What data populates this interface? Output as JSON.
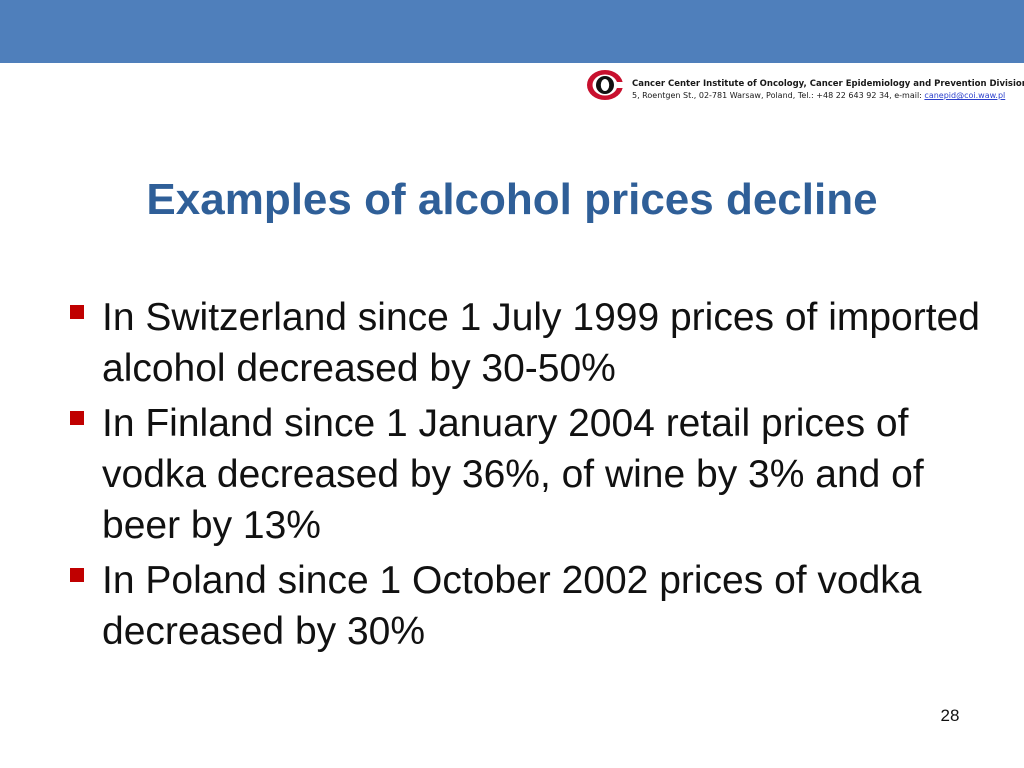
{
  "header": {
    "org_name": "Cancer Center Institute of Oncology, Cancer Epidemiology and Prevention Division",
    "address": "5, Roentgen St., 02-781 Warsaw, Poland, Tel.: +48 22 643 92 34, e-mail:",
    "email": "canepid@coi.waw.pl",
    "logo_icon": "institute-logo"
  },
  "slide": {
    "title": "Examples of alcohol prices decline",
    "bullets": [
      "In Switzerland since 1 July 1999 prices of imported alcohol decreased by 30-50%",
      "In Finland since 1 January 2004 retail prices of vodka decreased by 36%, of wine by 3% and of beer by 13%",
      "In Poland since 1 October 2002 prices of vodka decreased by 30%"
    ],
    "page_number": "28"
  },
  "colors": {
    "top_band": "#4f7fbb",
    "title": "#2f5f98",
    "bullet_marker": "#c00000",
    "logo_red": "#c8102e"
  }
}
